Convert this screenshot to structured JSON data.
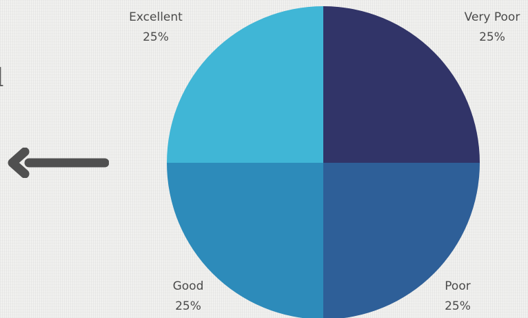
{
  "edge_text": "l",
  "icons": {
    "back_arrow": "arrow-left-icon"
  },
  "chart_data": {
    "type": "pie",
    "title": "",
    "start_angle_deg": 0,
    "direction": "clockwise",
    "slices": [
      {
        "label": "Very Poor",
        "value": 25,
        "value_label": "25%",
        "color": "#313468"
      },
      {
        "label": "Poor",
        "value": 25,
        "value_label": "25%",
        "color": "#2e5f98"
      },
      {
        "label": "Good",
        "value": 25,
        "value_label": "25%",
        "color": "#2d8bba"
      },
      {
        "label": "Excellent",
        "value": 25,
        "value_label": "25%",
        "color": "#40b6d6"
      }
    ]
  }
}
